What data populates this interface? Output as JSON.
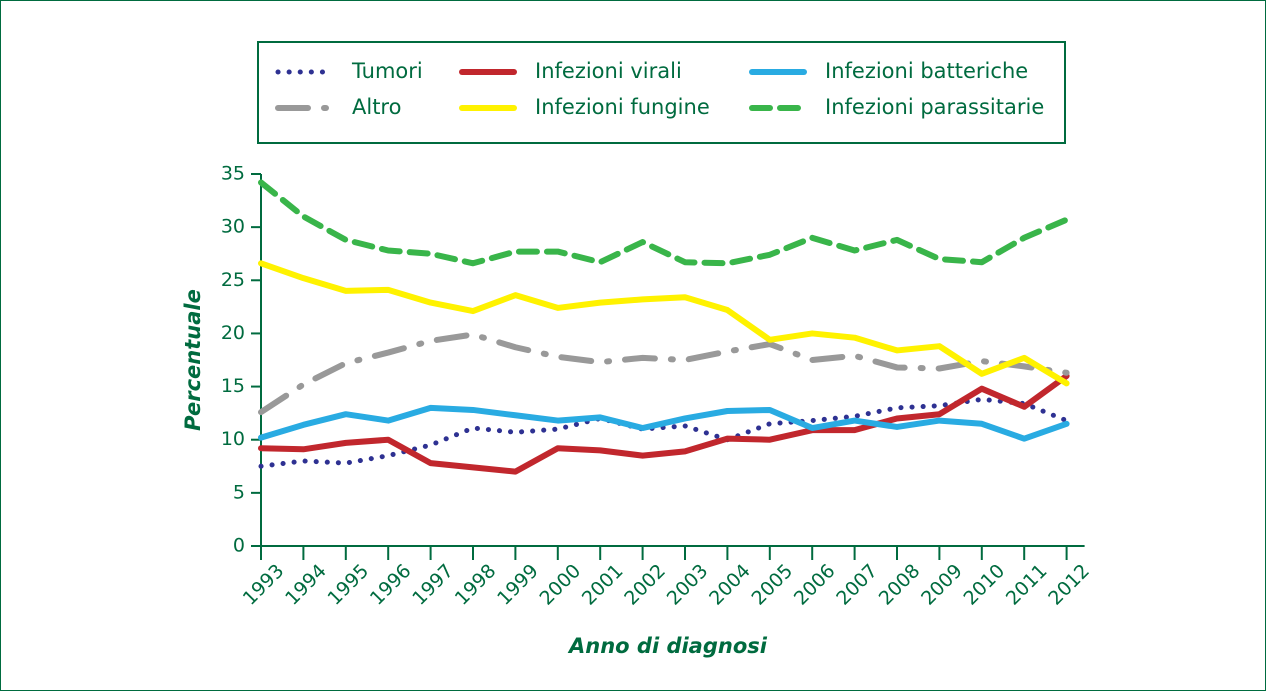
{
  "chart_data": {
    "type": "line",
    "x_label": "Anno di diagnosi",
    "y_label": "Percentuale",
    "categories": [
      "1993",
      "1994",
      "1995",
      "1996",
      "1997",
      "1998",
      "1999",
      "2000",
      "2001",
      "2002",
      "2003",
      "2004",
      "2005",
      "2006",
      "2007",
      "2008",
      "2009",
      "2010",
      "2011",
      "2012"
    ],
    "series": [
      {
        "name": "Tumori",
        "color": "#2e3192",
        "style": "dotted",
        "values": [
          7.5,
          8,
          7.8,
          8.5,
          9.5,
          11.1,
          10.7,
          11,
          12,
          11,
          11.3,
          10,
          11.5,
          11.8,
          12.2,
          13,
          13.2,
          13.8,
          13.4,
          11.8
        ]
      },
      {
        "name": "Infezioni virali",
        "color": "#c1272d",
        "style": "solid",
        "values": [
          9.2,
          9.1,
          9.7,
          10,
          7.8,
          7.4,
          7.0,
          9.2,
          9.0,
          8.5,
          8.9,
          10.1,
          10.0,
          10.9,
          10.9,
          12,
          12.4,
          14.8,
          13.1,
          16.0
        ]
      },
      {
        "name": "Infezioni batteriche",
        "color": "#29abe2",
        "style": "solid",
        "values": [
          10.2,
          11.4,
          12.4,
          11.8,
          13,
          12.8,
          12.3,
          11.8,
          12.1,
          11.1,
          12,
          12.7,
          12.8,
          11.1,
          11.8,
          11.2,
          11.8,
          11.5,
          10.1,
          11.5
        ]
      },
      {
        "name": "Altro",
        "color": "#999999",
        "style": "dashdot",
        "values": [
          12.6,
          15.2,
          17.2,
          18.2,
          19.3,
          19.9,
          18.7,
          17.8,
          17.3,
          17.7,
          17.5,
          18.3,
          19,
          17.5,
          17.9,
          16.8,
          16.7,
          17.4,
          16.9,
          16.3
        ]
      },
      {
        "name": "Infezioni fungine",
        "color": "#fff200",
        "style": "solid",
        "values": [
          26.6,
          25.2,
          24,
          24.1,
          22.9,
          22.1,
          23.6,
          22.4,
          22.9,
          23.2,
          23.4,
          22.2,
          19.4,
          20,
          19.6,
          18.4,
          18.8,
          16.2,
          17.7,
          15.3
        ]
      },
      {
        "name": "Infezioni parassitarie",
        "color": "#39b54a",
        "style": "dashed",
        "values": [
          34.2,
          31,
          28.8,
          27.8,
          27.5,
          26.6,
          27.7,
          27.7,
          26.7,
          28.6,
          26.7,
          26.6,
          27.4,
          29,
          27.8,
          28.8,
          27,
          26.7,
          29,
          30.7
        ]
      }
    ],
    "ylim": [
      0,
      35
    ],
    "yticks": [
      0,
      5,
      10,
      15,
      20,
      25,
      30,
      35
    ]
  }
}
